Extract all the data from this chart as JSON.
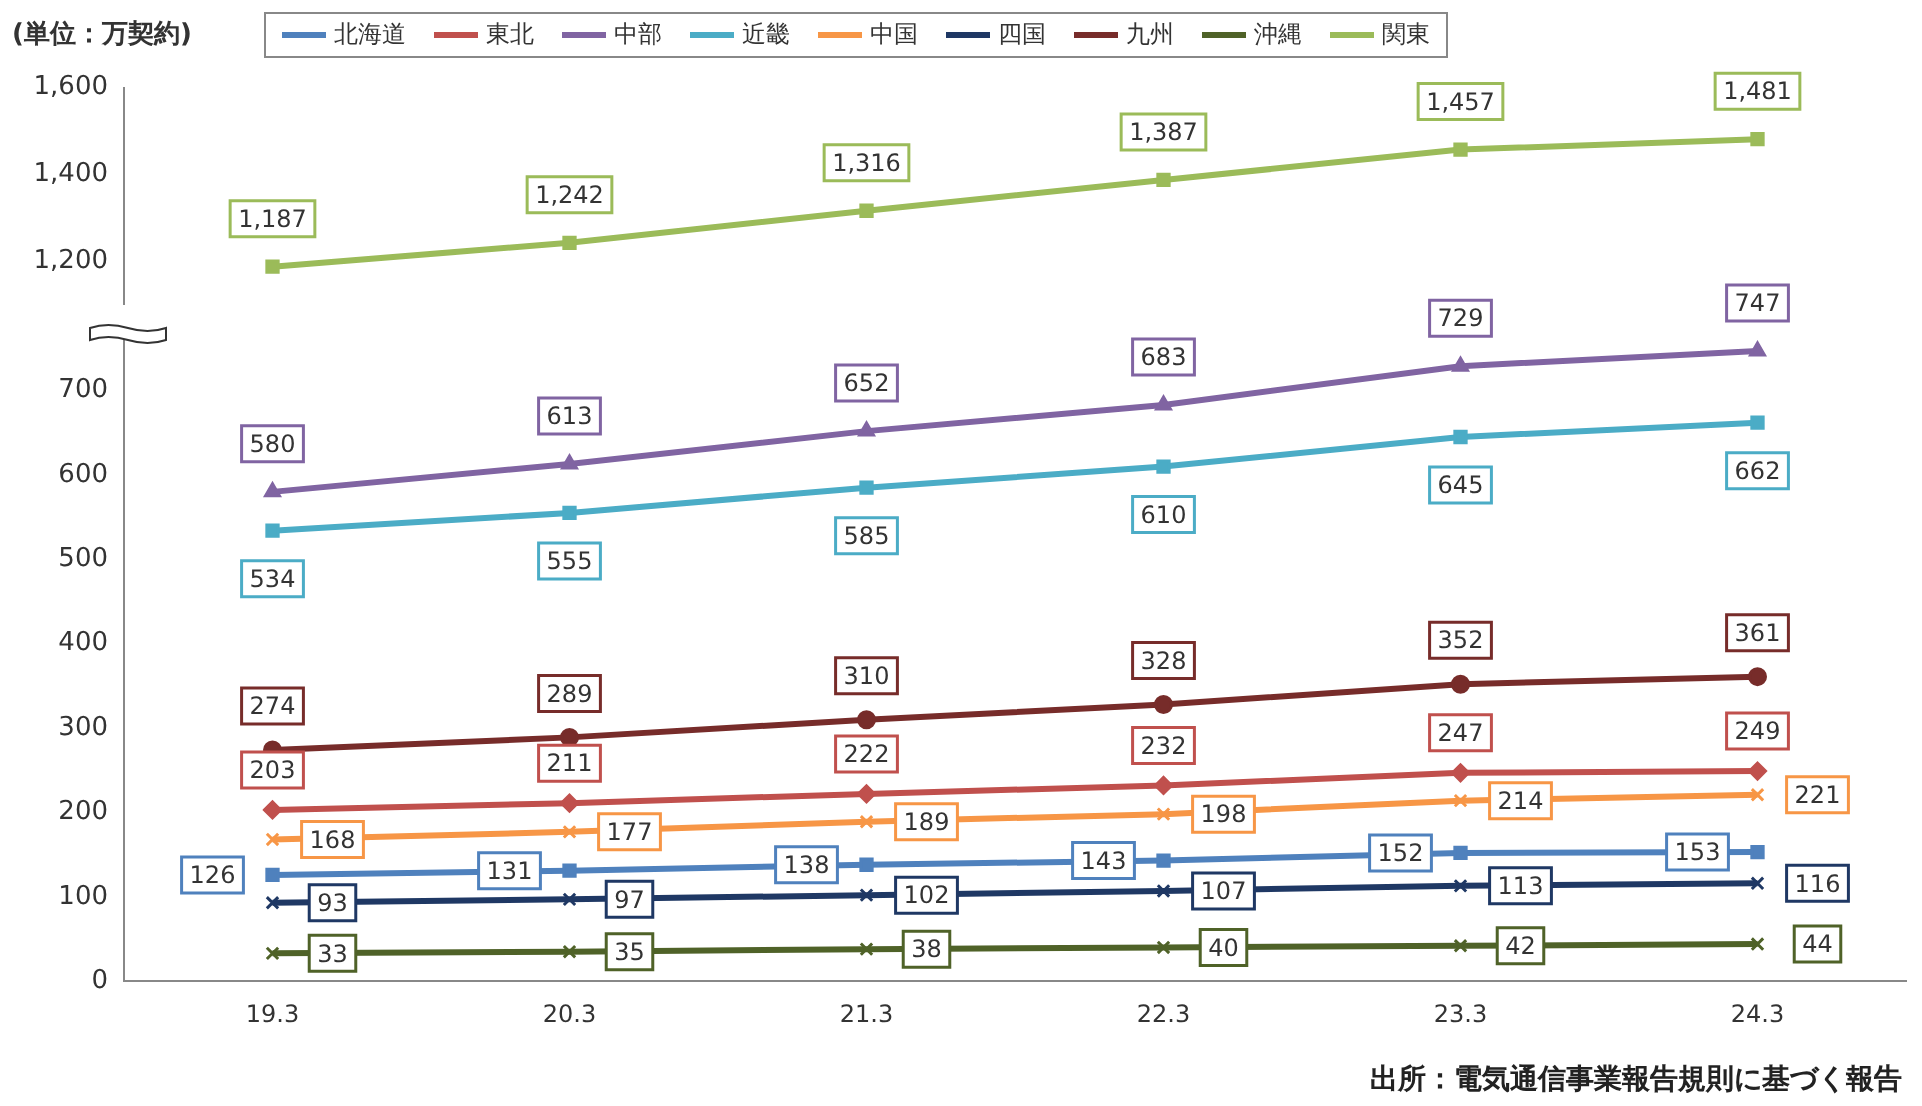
{
  "chart_data": [
    {
      "type": "line",
      "ylabel": "(単位：万契約)",
      "categories": [
        "19.3",
        "20.3",
        "21.3",
        "22.3",
        "23.3",
        "24.3"
      ],
      "series": [
        {
          "name": "関東",
          "color": "#9bbb59",
          "marker": "square",
          "values": [
            1187,
            1242,
            1316,
            1387,
            1457,
            1481
          ],
          "value_labels": [
            "1,187",
            "1,242",
            "1,316",
            "1,387",
            "1,457",
            "1,481"
          ]
        }
      ],
      "ylim": [
        1100,
        1600
      ],
      "yticks": [
        {
          "value": 1200,
          "label": "1,200"
        },
        {
          "value": 1400,
          "label": "1,400"
        },
        {
          "value": 1600,
          "label": "1,600"
        }
      ],
      "tick_labels": "y",
      "grid": false,
      "legend": "top"
    },
    {
      "type": "line",
      "categories": [
        "19.3",
        "20.3",
        "21.3",
        "22.3",
        "23.3",
        "24.3"
      ],
      "series": [
        {
          "name": "北海道",
          "color": "#4f81bd",
          "marker": "square",
          "values": [
            126,
            131,
            138,
            143,
            152,
            153
          ]
        },
        {
          "name": "東北",
          "color": "#c0504d",
          "marker": "diamond",
          "values": [
            203,
            211,
            222,
            232,
            247,
            249
          ]
        },
        {
          "name": "中部",
          "color": "#8064a2",
          "marker": "triangle",
          "values": [
            580,
            613,
            652,
            683,
            729,
            747
          ]
        },
        {
          "name": "近畿",
          "color": "#4bacc6",
          "marker": "square",
          "values": [
            534,
            555,
            585,
            610,
            645,
            662
          ]
        },
        {
          "name": "中国",
          "color": "#f79646",
          "marker": "cross",
          "values": [
            168,
            177,
            189,
            198,
            214,
            221
          ]
        },
        {
          "name": "四国",
          "color": "#1f3864",
          "marker": "cross",
          "values": [
            93,
            97,
            102,
            107,
            113,
            116
          ]
        },
        {
          "name": "九州",
          "color": "#772c2a",
          "marker": "circle",
          "values": [
            274,
            289,
            310,
            328,
            352,
            361
          ]
        },
        {
          "name": "沖縄",
          "color": "#4f6228",
          "marker": "cross",
          "values": [
            33,
            35,
            38,
            40,
            42,
            44
          ]
        }
      ],
      "ylim": [
        0,
        760
      ],
      "yticks": [
        0,
        100,
        200,
        300,
        400,
        500,
        600,
        700
      ],
      "grid": false,
      "legend": "top",
      "data_labels": true,
      "annotations": [
        "出所：電気通信事業報告規則に基づく報告"
      ]
    }
  ]
}
